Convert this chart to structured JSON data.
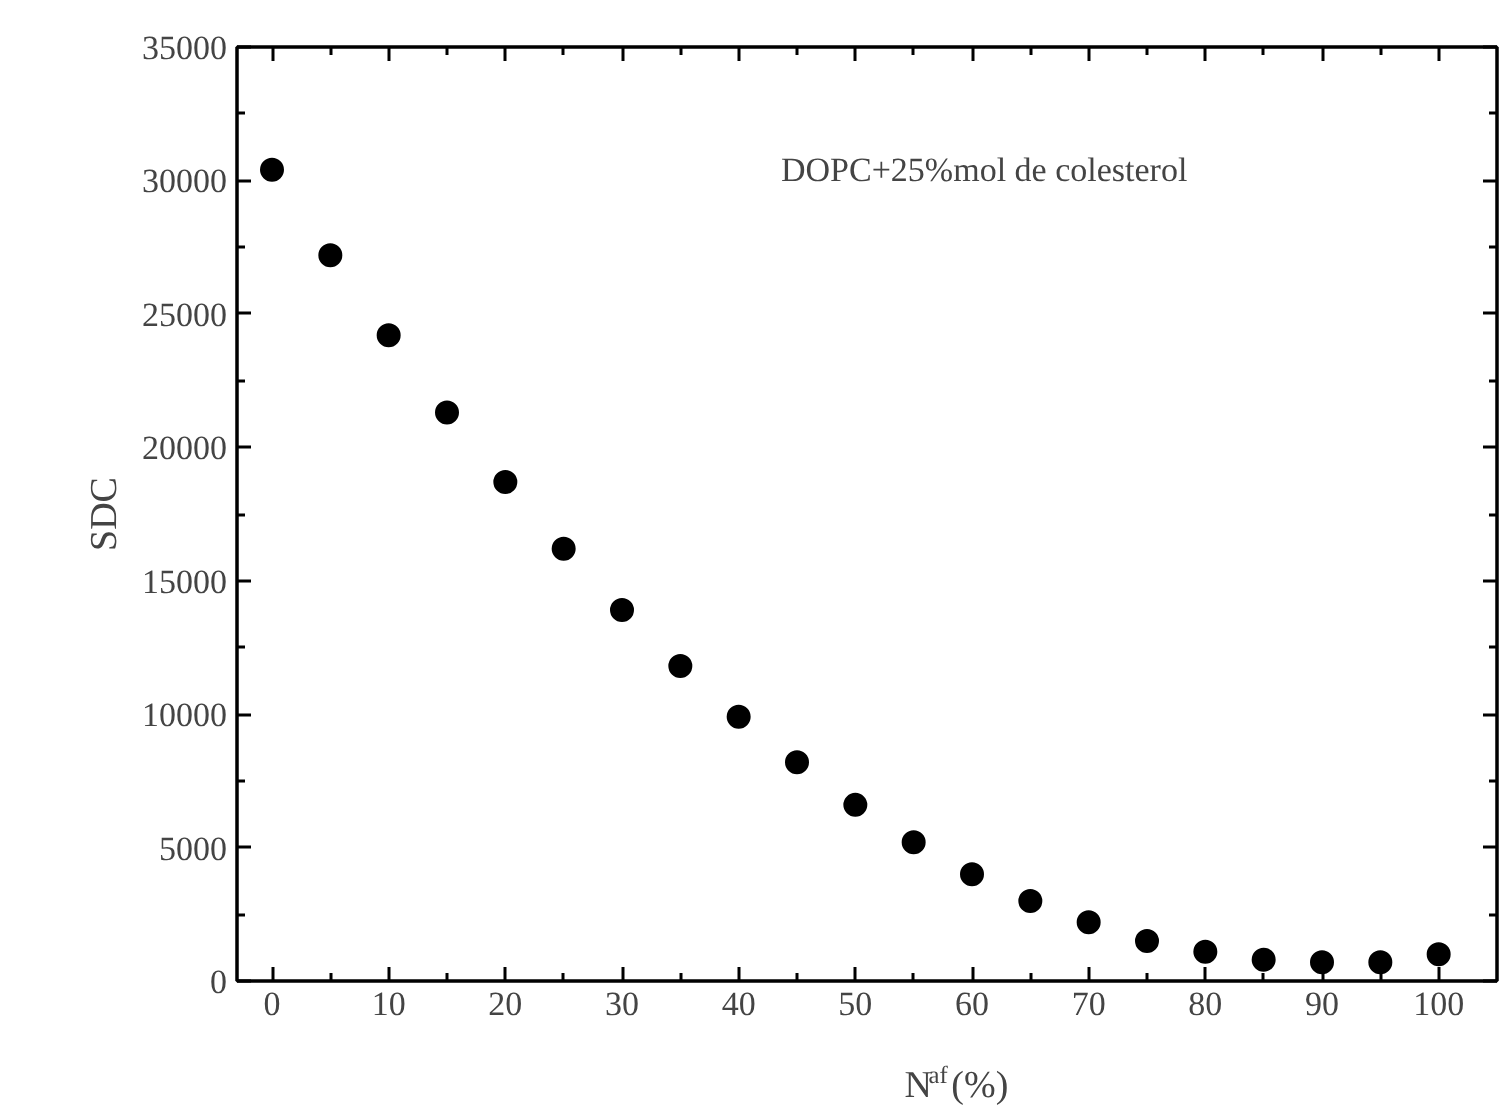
{
  "chart_data": {
    "type": "scatter",
    "xlabel": "N$^{af}$(%)",
    "ylabel": "SDC",
    "annotations": [
      "DOPC+25%mol de colesterol"
    ],
    "x": [
      0,
      5,
      10,
      15,
      20,
      25,
      30,
      35,
      40,
      45,
      50,
      55,
      60,
      65,
      70,
      75,
      80,
      85,
      90,
      95,
      100
    ],
    "series": [
      {
        "color": "#000000",
        "values": [
          30400,
          27200,
          24200,
          21300,
          18700,
          16200,
          13900,
          11800,
          9900,
          8200,
          6600,
          5200,
          4000,
          3000,
          2200,
          1500,
          1100,
          800,
          700,
          700,
          1000
        ]
      }
    ],
    "marker": "circle",
    "xlim": [
      -3,
      105
    ],
    "xticks": [
      0,
      10,
      20,
      30,
      40,
      50,
      60,
      70,
      80,
      90,
      100
    ],
    "ylim": [
      0,
      35000
    ],
    "yticks": [
      0,
      5000,
      10000,
      15000,
      20000,
      25000,
      30000,
      35000
    ],
    "grid": false
  }
}
